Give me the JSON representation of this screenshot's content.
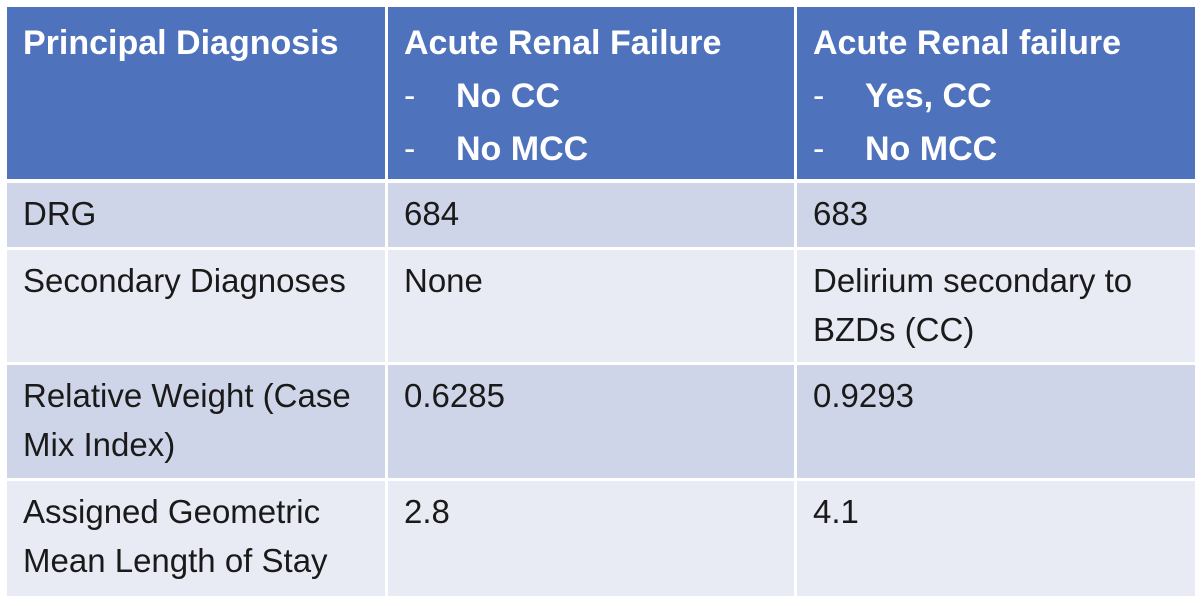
{
  "header": {
    "col1": "Principal Diagnosis",
    "col2": {
      "title": "Acute Renal Failure",
      "items": [
        "No CC",
        "No MCC"
      ]
    },
    "col3": {
      "title": "Acute Renal failure",
      "items": [
        "Yes, CC",
        "No MCC"
      ]
    }
  },
  "rows": [
    {
      "label": "DRG",
      "col2": "684",
      "col3": "683"
    },
    {
      "label": "Secondary Diagnoses",
      "col2": "None",
      "col3": "Delirium secondary to BZDs (CC)"
    },
    {
      "label": "Relative Weight (Case Mix Index)",
      "col2": "0.6285",
      "col3": "0.9293"
    },
    {
      "label": "Assigned Geometric Mean Length of Stay",
      "col2": "2.8",
      "col3": "4.1"
    }
  ],
  "colors": {
    "header_bg": "#4f72bd",
    "row_dark": "#cfd5e8",
    "row_light": "#e9ebf4"
  }
}
